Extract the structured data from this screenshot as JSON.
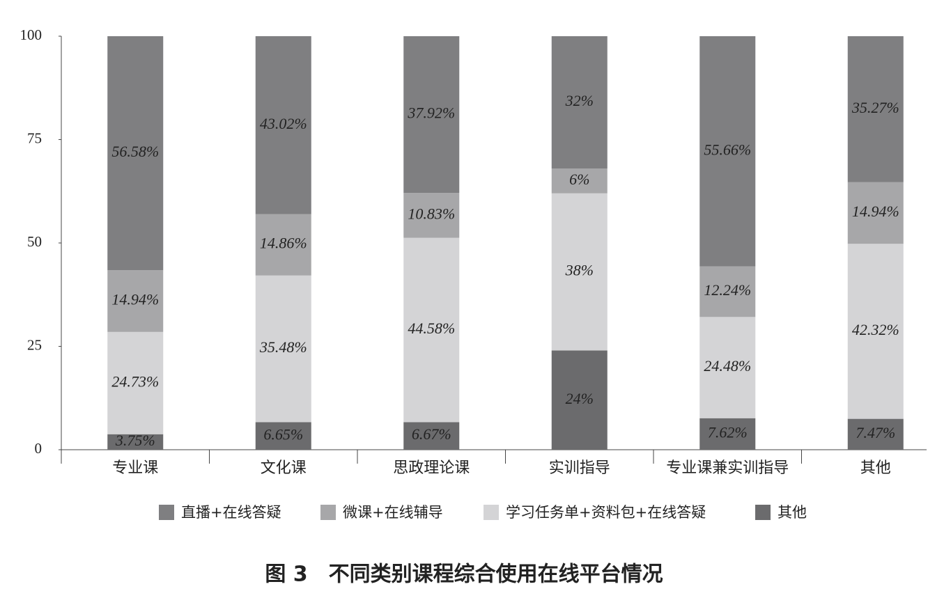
{
  "chart_data": {
    "type": "stacked_bar",
    "title": "图 3　不同类别课程综合使用在线平台情况",
    "categories": [
      "专业课",
      "文化课",
      "思政理论课",
      "实训指导",
      "专业课兼实训指导",
      "其他"
    ],
    "series": [
      {
        "name": "直播+在线答疑",
        "color": "#7f7f81",
        "values": [
          56.58,
          43.02,
          37.92,
          32,
          55.66,
          35.27
        ],
        "value_labels": [
          "56.58%",
          "43.02%",
          "37.92%",
          "32%",
          "55.66%",
          "35.27%"
        ]
      },
      {
        "name": "微课+在线辅导",
        "color": "#a7a7a9",
        "values": [
          14.94,
          14.86,
          10.83,
          6,
          12.24,
          14.94
        ],
        "value_labels": [
          "14.94%",
          "14.86%",
          "10.83%",
          "6%",
          "12.24%",
          "14.94%"
        ]
      },
      {
        "name": "学习任务单+资料包+在线答疑",
        "color": "#d4d4d6",
        "values": [
          24.73,
          35.48,
          44.58,
          38,
          24.48,
          42.32
        ],
        "value_labels": [
          "24.73%",
          "35.48%",
          "44.58%",
          "38%",
          "24.48%",
          "42.32%"
        ]
      },
      {
        "name": "其他",
        "color": "#6b6b6d",
        "values": [
          3.75,
          6.65,
          6.67,
          24,
          7.62,
          7.47
        ],
        "value_labels": [
          "3.75%",
          "6.65%",
          "6.67%",
          "24%",
          "7.62%",
          "7.47%"
        ]
      }
    ],
    "ylim": [
      0,
      100
    ],
    "yticks": [
      0,
      25,
      50,
      75,
      100
    ]
  }
}
